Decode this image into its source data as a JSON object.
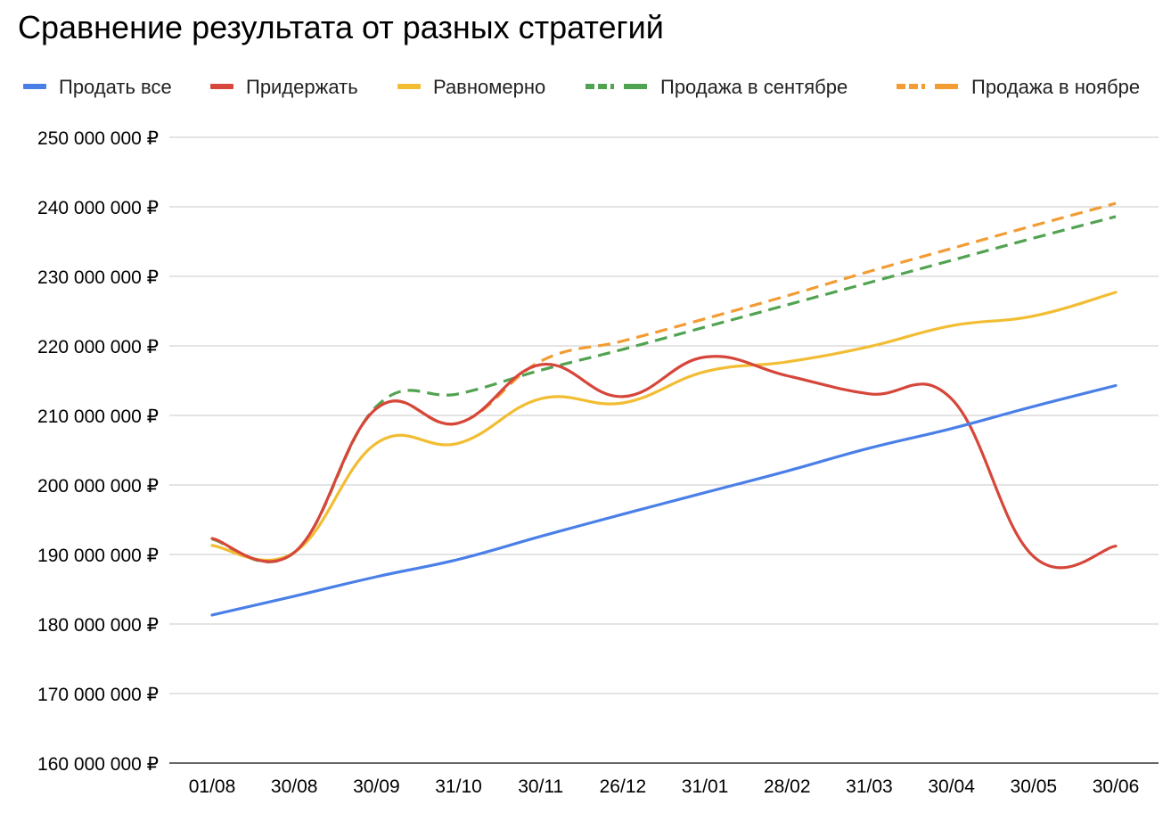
{
  "chart_data": {
    "type": "line",
    "title": "Сравнение результата от разных стратегий",
    "xlabel": "",
    "ylabel": "",
    "legend_position": "top",
    "grid": true,
    "categories": [
      "01/08",
      "30/08",
      "30/09",
      "31/10",
      "30/11",
      "26/12",
      "31/01",
      "28/02",
      "31/03",
      "30/04",
      "30/05",
      "30/06"
    ],
    "y_ticks": [
      160000000,
      170000000,
      180000000,
      190000000,
      200000000,
      210000000,
      220000000,
      230000000,
      240000000,
      250000000
    ],
    "y_tick_labels": [
      "160 000 000 ₽",
      "170 000 000 ₽",
      "180 000 000 ₽",
      "190 000 000 ₽",
      "200 000 000 ₽",
      "210 000 000 ₽",
      "220 000 000 ₽",
      "230 000 000 ₽",
      "240 000 000 ₽",
      "250 000 000 ₽"
    ],
    "ylim": [
      160000000,
      250000000
    ],
    "series": [
      {
        "name": "Продать все",
        "color": "#4A7FE8",
        "dashed": false,
        "start_index": 0,
        "values": [
          181300000,
          184000000,
          186800000,
          189300000,
          192600000,
          195800000,
          198900000,
          202000000,
          205300000,
          208100000,
          211300000,
          214300000
        ]
      },
      {
        "name": "Придержать",
        "color": "#D6463A",
        "dashed": false,
        "start_index": 0,
        "values": [
          192300000,
          190300000,
          211000000,
          208900000,
          217300000,
          212700000,
          218400000,
          215700000,
          213100000,
          212400000,
          189700000,
          191200000
        ]
      },
      {
        "name": "Равномерно",
        "color": "#F2BD33",
        "dashed": false,
        "start_index": 0,
        "values": [
          191300000,
          190300000,
          206000000,
          206000000,
          212400000,
          211800000,
          216300000,
          217700000,
          219900000,
          222900000,
          224300000,
          227700000
        ]
      },
      {
        "name": "Продажа в сентябре",
        "color": "#51A351",
        "dashed": true,
        "start_index": 0,
        "values": [
          192200000,
          190300000,
          211300000,
          213100000,
          216500000,
          219500000,
          222700000,
          225900000,
          229100000,
          232300000,
          235500000,
          238600000
        ]
      },
      {
        "name": "Продажа в ноябре",
        "color": "#F29C33",
        "dashed": true,
        "start_index": 0,
        "values": [
          192300000,
          190300000,
          211000000,
          208900000,
          217800000,
          220700000,
          223900000,
          227200000,
          230700000,
          234000000,
          237300000,
          240500000
        ]
      }
    ]
  }
}
